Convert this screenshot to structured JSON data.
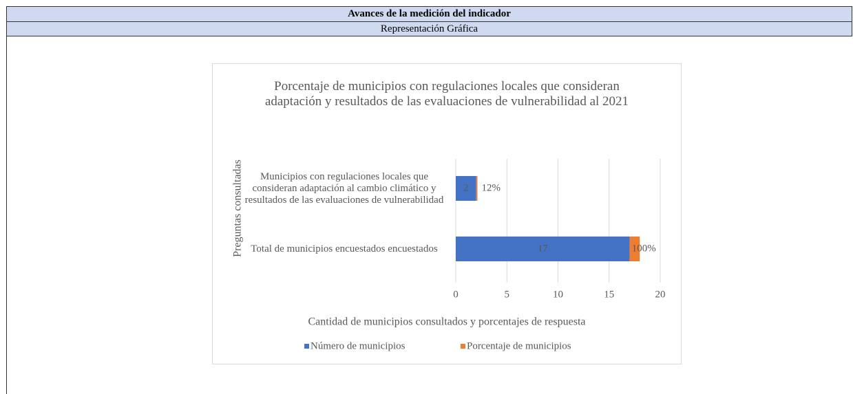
{
  "header": {
    "title": "Avances de la medición del indicador",
    "subtitle": "Representación Gráfica"
  },
  "chart_data": {
    "type": "stacked_barh",
    "title": "Porcentaje de municipios  con regulaciones locales que consideran adaptación y resultados de las evaluaciones de vulnerabilidad  al 2021",
    "x_label": "Cantidad de municipios  consultados y porcentajes de respuesta",
    "y_label": "Preguntas consultadas",
    "categories": [
      "Municipios con regulaciones locales que consideran adaptación al cambio climático y resultados de las evaluaciones de vulnerabilidad",
      "Total de municipios encuestados encuestados"
    ],
    "series": [
      {
        "name": "Número de municipios",
        "color": "#4472c4",
        "values": [
          2,
          17
        ]
      },
      {
        "name": "Porcentaje de municipios",
        "color": "#ed7d31",
        "values": [
          0.12,
          1
        ],
        "value_labels": [
          "12%",
          "100%"
        ]
      }
    ],
    "xlim": [
      0,
      20
    ],
    "xticks": [
      0,
      5,
      10,
      15,
      20
    ],
    "grid": true,
    "legend": "bottom"
  }
}
